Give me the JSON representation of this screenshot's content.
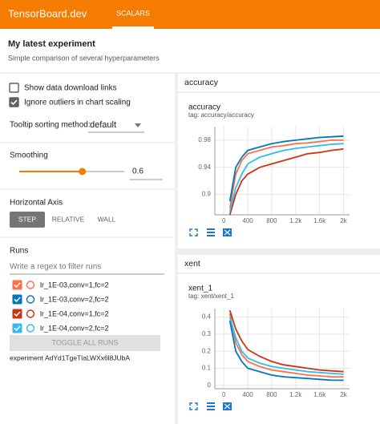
{
  "header": {
    "brand": "TensorBoard.dev",
    "tab": "SCALARS"
  },
  "experiment": {
    "title": "My latest experiment",
    "description": "Simple comparison of several hyperparameters"
  },
  "sidebar": {
    "options": [
      {
        "label": "Show data download links",
        "checked": false
      },
      {
        "label": "Ignore outliers in chart scaling",
        "checked": true
      }
    ],
    "tooltip": {
      "label": "Tooltip sorting method:",
      "value": "default"
    },
    "smoothing": {
      "label": "Smoothing",
      "value": 0.6
    },
    "axis": {
      "label": "Horizontal Axis",
      "options": [
        "STEP",
        "RELATIVE",
        "WALL"
      ],
      "selected": 0
    },
    "runs": {
      "label": "Runs",
      "placeholder": "Write a regex to filter runs",
      "items": [
        {
          "name": "lr_1E-03,conv=1,fc=2",
          "color": "#ff7043",
          "checked": true
        },
        {
          "name": "lr_1E-03,conv=2,fc=2",
          "color": "#0077bb",
          "checked": true
        },
        {
          "name": "lr_1E-04,conv=1,fc=2",
          "color": "#cc3311",
          "checked": true
        },
        {
          "name": "lr_1E-04,conv=2,fc=2",
          "color": "#33bbee",
          "checked": true
        }
      ],
      "toggle": "TOGGLE ALL RUNS",
      "experiment_id": "experiment AdYd1TgeTlaLWXx6l8JUbA"
    }
  },
  "charts": [
    {
      "section": "accuracy",
      "title": "accuracy",
      "subtitle": "tag: accuracy/accuracy",
      "x": [
        100,
        200,
        300,
        400,
        600,
        800,
        1000,
        1200,
        1400,
        1600,
        1800,
        2000
      ],
      "xlim": [
        -150,
        2100
      ],
      "xticks": [
        0,
        400,
        800,
        {
          "value": 1200,
          "label": "1.2k"
        },
        {
          "value": 1600,
          "label": "1.6k"
        },
        {
          "value": 2000,
          "label": "2k"
        }
      ],
      "ylim": [
        0.87,
        1.0
      ],
      "yticks": [
        0.9,
        0.94,
        0.98
      ],
      "series": [
        {
          "color": "#ff7043",
          "values": [
            0.88,
            0.93,
            0.95,
            0.96,
            0.965,
            0.97,
            0.972,
            0.975,
            0.976,
            0.978,
            0.98,
            0.98
          ]
        },
        {
          "color": "#0077bb",
          "values": [
            0.89,
            0.94,
            0.955,
            0.965,
            0.97,
            0.975,
            0.978,
            0.98,
            0.982,
            0.984,
            0.985,
            0.986
          ]
        },
        {
          "color": "#cc3311",
          "values": [
            0.87,
            0.9,
            0.92,
            0.93,
            0.94,
            0.945,
            0.95,
            0.955,
            0.96,
            0.962,
            0.965,
            0.967
          ]
        },
        {
          "color": "#33bbee",
          "values": [
            0.875,
            0.91,
            0.93,
            0.945,
            0.955,
            0.96,
            0.965,
            0.968,
            0.97,
            0.972,
            0.974,
            0.975
          ]
        }
      ]
    },
    {
      "section": "xent",
      "title": "xent_1",
      "subtitle": "tag: xent/xent_1",
      "x": [
        100,
        200,
        300,
        400,
        600,
        800,
        1000,
        1200,
        1400,
        1600,
        1800,
        2000
      ],
      "xlim": [
        -150,
        2100
      ],
      "xticks": [
        0,
        400,
        800,
        {
          "value": 1200,
          "label": "1.2k"
        },
        {
          "value": 1600,
          "label": "1.6k"
        },
        {
          "value": 2000,
          "label": "2k"
        }
      ],
      "ylim": [
        -0.02,
        0.45
      ],
      "yticks": [
        0,
        0.1,
        0.2,
        0.3,
        0.4
      ],
      "series": [
        {
          "color": "#ff7043",
          "values": [
            0.42,
            0.25,
            0.18,
            0.14,
            0.11,
            0.09,
            0.08,
            0.07,
            0.06,
            0.055,
            0.05,
            0.05
          ]
        },
        {
          "color": "#0077bb",
          "values": [
            0.38,
            0.2,
            0.14,
            0.1,
            0.08,
            0.06,
            0.05,
            0.045,
            0.04,
            0.035,
            0.03,
            0.03
          ]
        },
        {
          "color": "#cc3311",
          "values": [
            0.44,
            0.33,
            0.26,
            0.21,
            0.17,
            0.14,
            0.12,
            0.11,
            0.1,
            0.09,
            0.085,
            0.08
          ]
        },
        {
          "color": "#33bbee",
          "values": [
            0.4,
            0.28,
            0.2,
            0.16,
            0.13,
            0.11,
            0.1,
            0.09,
            0.08,
            0.075,
            0.07,
            0.065
          ]
        }
      ]
    }
  ]
}
